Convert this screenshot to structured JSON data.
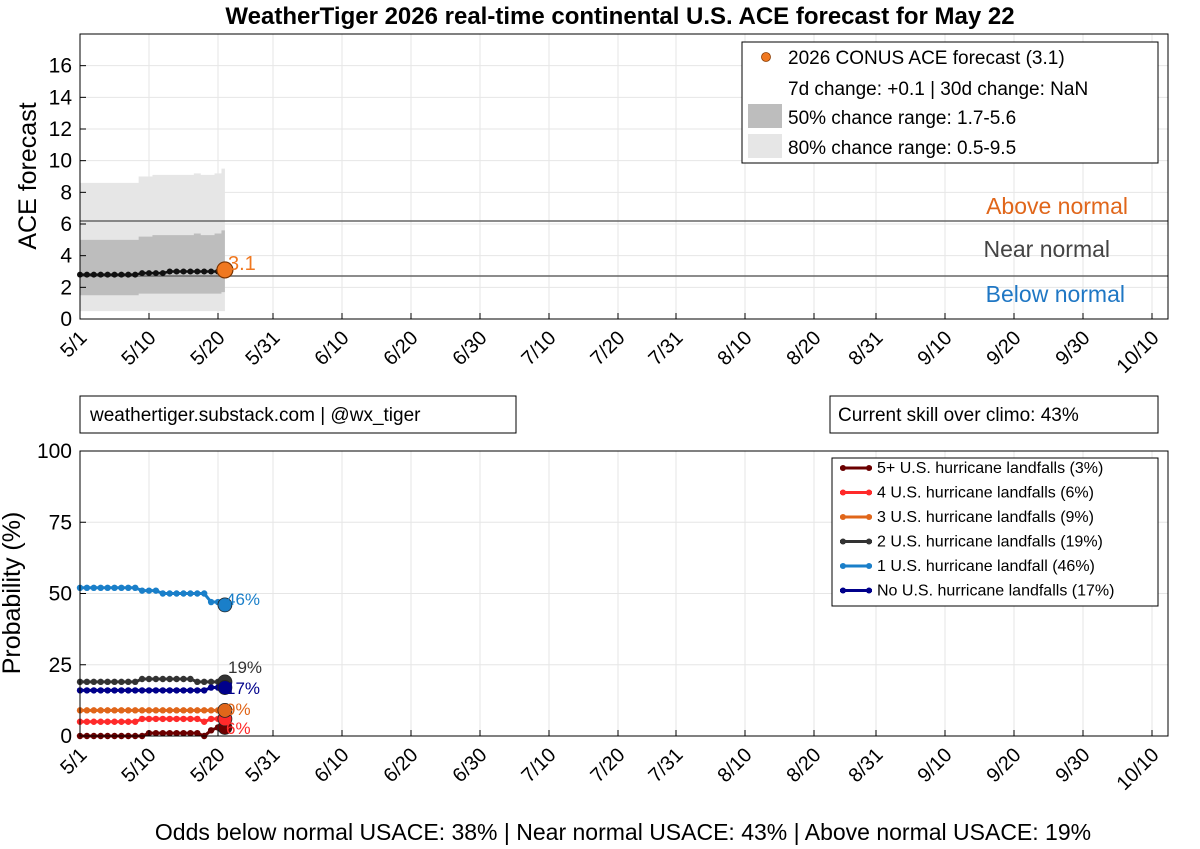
{
  "title": "WeatherTiger 2026 real-time continental U.S. ACE forecast for May 22",
  "x_tick_labels": [
    "5/1",
    "5/10",
    "5/20",
    "5/31",
    "6/10",
    "6/20",
    "6/30",
    "7/10",
    "7/20",
    "7/31",
    "8/10",
    "8/20",
    "8/31",
    "9/10",
    "9/20",
    "9/30",
    "10/10"
  ],
  "top_chart": {
    "ylabel": "ACE forecast",
    "y_ticks": [
      "0",
      "2",
      "4",
      "6",
      "8",
      "10",
      "12",
      "14",
      "16"
    ],
    "legend": {
      "forecast": "2026 CONUS ACE forecast (3.1)",
      "change": "7d change: +0.1 | 30d change: NaN",
      "range50": "50% chance range: 1.7-5.6",
      "range80": "80% chance range: 0.5-9.5"
    },
    "zones": {
      "above": "Above normal",
      "near": "Near normal",
      "below": "Below normal"
    },
    "end_label": "3.1"
  },
  "info": {
    "source": "weathertiger.substack.com | @wx_tiger",
    "skill": "Current skill over climo: 43%"
  },
  "bottom_chart": {
    "ylabel": "Probability (%)",
    "y_ticks": [
      "0",
      "25",
      "50",
      "75",
      "100"
    ],
    "legend": [
      "5+ U.S. hurricane landfalls (3%)",
      "4 U.S. hurricane landfalls (6%)",
      "3 U.S. hurricane landfalls (9%)",
      "2 U.S. hurricane landfalls (19%)",
      "1 U.S. hurricane landfall (46%)",
      "No U.S. hurricane landfalls (17%)"
    ],
    "end_labels": [
      "3%",
      "6%",
      "9%",
      "19%",
      "46%",
      "17%"
    ]
  },
  "footer": "Odds below normal USACE: 38% | Near normal USACE: 43% | Above normal USACE: 19%",
  "colors": {
    "ace": "#111111",
    "ace_marker": "#f07820",
    "band50": "#bdbdbd",
    "band80": "#e6e6e6",
    "above": "#e0661a",
    "near": "#444444",
    "below": "#1f77c4",
    "s5": "#6b0000",
    "s4": "#ff2a2a",
    "s3": "#e0661a",
    "s2": "#333333",
    "s1": "#1a7fc9",
    "s0": "#00008b"
  },
  "chart_data": [
    {
      "type": "line",
      "title": "WeatherTiger 2026 real-time continental U.S. ACE forecast for May 22",
      "xlabel": "",
      "ylabel": "ACE forecast",
      "x_range": [
        "5/1",
        "10/16"
      ],
      "ylim": [
        0,
        18
      ],
      "grid": true,
      "legend_position": "top-right",
      "thresholds": {
        "below_near": 2.6,
        "near_above": 6.0
      },
      "series": [
        {
          "name": "2026 CONUS ACE forecast (3.1)",
          "x": [
            "5/1",
            "5/2",
            "5/3",
            "5/4",
            "5/5",
            "5/6",
            "5/7",
            "5/8",
            "5/9",
            "5/10",
            "5/11",
            "5/12",
            "5/13",
            "5/14",
            "5/15",
            "5/16",
            "5/17",
            "5/18",
            "5/19",
            "5/20",
            "5/21",
            "5/22"
          ],
          "values": [
            2.8,
            2.8,
            2.8,
            2.8,
            2.8,
            2.8,
            2.8,
            2.8,
            2.8,
            2.9,
            2.9,
            2.9,
            2.9,
            3.0,
            3.0,
            3.0,
            3.0,
            3.0,
            3.0,
            3.0,
            3.0,
            3.1
          ],
          "band50_low": [
            1.5,
            1.5,
            1.5,
            1.5,
            1.5,
            1.5,
            1.5,
            1.5,
            1.5,
            1.6,
            1.6,
            1.6,
            1.6,
            1.6,
            1.6,
            1.6,
            1.6,
            1.6,
            1.6,
            1.6,
            1.6,
            1.7
          ],
          "band50_high": [
            5.0,
            5.0,
            5.0,
            5.0,
            5.0,
            5.0,
            5.0,
            5.0,
            5.0,
            5.2,
            5.2,
            5.3,
            5.3,
            5.3,
            5.3,
            5.3,
            5.3,
            5.4,
            5.3,
            5.3,
            5.4,
            5.6
          ],
          "band80_low": [
            0.5,
            0.5,
            0.5,
            0.5,
            0.5,
            0.5,
            0.5,
            0.5,
            0.5,
            0.5,
            0.5,
            0.5,
            0.5,
            0.5,
            0.5,
            0.5,
            0.5,
            0.5,
            0.5,
            0.5,
            0.5,
            0.5
          ],
          "band80_high": [
            8.6,
            8.6,
            8.6,
            8.6,
            8.6,
            8.6,
            8.6,
            8.6,
            8.6,
            9.0,
            9.0,
            9.1,
            9.1,
            9.1,
            9.1,
            9.1,
            9.1,
            9.2,
            9.1,
            9.1,
            9.2,
            9.5
          ]
        }
      ]
    },
    {
      "type": "line",
      "title": "",
      "xlabel": "",
      "ylabel": "Probability (%)",
      "x_range": [
        "5/1",
        "10/16"
      ],
      "ylim": [
        0,
        100
      ],
      "grid": true,
      "legend_position": "top-right",
      "x": [
        "5/1",
        "5/2",
        "5/3",
        "5/4",
        "5/5",
        "5/6",
        "5/7",
        "5/8",
        "5/9",
        "5/10",
        "5/11",
        "5/12",
        "5/13",
        "5/14",
        "5/15",
        "5/16",
        "5/17",
        "5/18",
        "5/19",
        "5/20",
        "5/21",
        "5/22"
      ],
      "series": [
        {
          "name": "5+ U.S. hurricane landfalls (3%)",
          "values": [
            0,
            0,
            0,
            0,
            0,
            0,
            0,
            0,
            0,
            0,
            1,
            1,
            1,
            1,
            1,
            1,
            1,
            1,
            0,
            2,
            3,
            3
          ]
        },
        {
          "name": "4 U.S. hurricane landfalls (6%)",
          "values": [
            5,
            5,
            5,
            5,
            5,
            5,
            5,
            5,
            5,
            6,
            6,
            6,
            6,
            6,
            6,
            6,
            6,
            6,
            5,
            6,
            6,
            6
          ]
        },
        {
          "name": "3 U.S. hurricane landfalls (9%)",
          "values": [
            9,
            9,
            9,
            9,
            9,
            9,
            9,
            9,
            9,
            9,
            9,
            9,
            9,
            9,
            9,
            9,
            9,
            9,
            9,
            9,
            9,
            9
          ]
        },
        {
          "name": "2 U.S. hurricane landfalls (19%)",
          "values": [
            19,
            19,
            19,
            19,
            19,
            19,
            19,
            19,
            19,
            20,
            20,
            20,
            20,
            20,
            20,
            20,
            20,
            19,
            19,
            19,
            19,
            19
          ]
        },
        {
          "name": "1 U.S. hurricane landfall (46%)",
          "values": [
            52,
            52,
            52,
            52,
            52,
            52,
            52,
            52,
            52,
            51,
            51,
            51,
            50,
            50,
            50,
            50,
            50,
            50,
            50,
            47,
            47,
            46
          ]
        },
        {
          "name": "No U.S. hurricane landfalls (17%)",
          "values": [
            16,
            16,
            16,
            16,
            16,
            16,
            16,
            16,
            16,
            16,
            16,
            16,
            16,
            16,
            16,
            16,
            16,
            16,
            16,
            17,
            17,
            17
          ]
        }
      ]
    }
  ]
}
